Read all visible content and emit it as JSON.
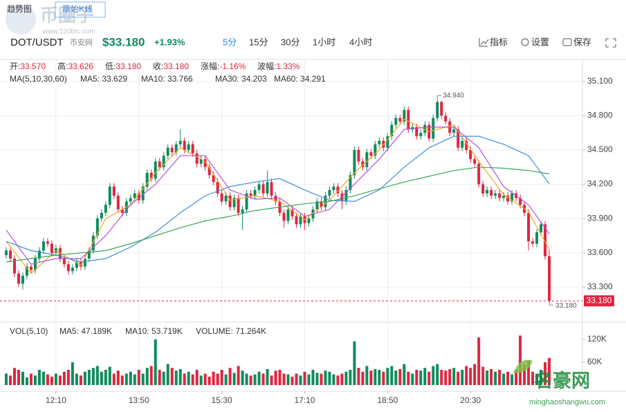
{
  "header": {
    "tabs": [
      "趋势图",
      "原始K线"
    ],
    "pair": "DOT/USDT",
    "exchange": "币安网",
    "price": "$33.180",
    "change": "+1.93%",
    "intervals": [
      "5分",
      "15分",
      "30分",
      "1小时",
      "4小时"
    ],
    "active_interval": 0,
    "tools": [
      "指标",
      "设置",
      "保存"
    ]
  },
  "watermarks": [
    "币圈子",
    "www.120btc.com",
    "名豪网",
    "minghaoshangwu.com"
  ],
  "chart_data": {
    "type": "candlestick",
    "ohlc_info": [
      {
        "label": "开:",
        "value": "33.570"
      },
      {
        "label": "高:",
        "value": "33.626"
      },
      {
        "label": "低:",
        "value": "33.180"
      },
      {
        "label": "收:",
        "value": "33.180"
      },
      {
        "label": "涨幅:",
        "value": "-1.16%"
      },
      {
        "label": "波幅:",
        "value": "1.33%"
      }
    ],
    "ma_title": "MA(5,10,30,60)",
    "up_color": "#0e8c5c",
    "down_color": "#e0253f",
    "xlim": [
      -1.5,
      139
    ],
    "xticks": [
      {
        "value": 12,
        "label": "12:10"
      },
      {
        "value": 32,
        "label": "13:50"
      },
      {
        "value": 52,
        "label": "15:30"
      },
      {
        "value": 72,
        "label": "17:10"
      },
      {
        "value": 92,
        "label": "18:50"
      },
      {
        "value": 112,
        "label": "20:30"
      }
    ],
    "ylim": [
      33.03,
      35.28
    ],
    "yticks": [
      {
        "value": 35.1,
        "label": "35.100"
      },
      {
        "value": 34.8,
        "label": "34.800"
      },
      {
        "value": 34.5,
        "label": "34.500"
      },
      {
        "value": 34.2,
        "label": "34.200"
      },
      {
        "value": 33.9,
        "label": "33.900"
      },
      {
        "value": 33.6,
        "label": "33.600"
      },
      {
        "value": 33.3,
        "label": "33.300"
      }
    ],
    "grid": true,
    "candles": [
      [
        33.58,
        33.65,
        33.55,
        33.62
      ],
      [
        33.62,
        33.65,
        33.52,
        33.55
      ],
      [
        33.55,
        33.58,
        33.39,
        33.42
      ],
      [
        33.42,
        33.45,
        33.3,
        33.33
      ],
      [
        33.33,
        33.43,
        33.28,
        33.4
      ],
      [
        33.4,
        33.51,
        33.37,
        33.48
      ],
      [
        33.48,
        33.51,
        33.42,
        33.45
      ],
      [
        33.45,
        33.58,
        33.42,
        33.55
      ],
      [
        33.55,
        33.65,
        33.52,
        33.62
      ],
      [
        33.62,
        33.73,
        33.59,
        33.7
      ],
      [
        33.7,
        33.73,
        33.65,
        33.68
      ],
      [
        33.68,
        33.71,
        33.57,
        33.6
      ],
      [
        33.6,
        33.67,
        33.57,
        33.64
      ],
      [
        33.64,
        33.67,
        33.52,
        33.55
      ],
      [
        33.55,
        33.58,
        33.47,
        33.5
      ],
      [
        33.5,
        33.53,
        33.41,
        33.44
      ],
      [
        33.44,
        33.5,
        33.41,
        33.47
      ],
      [
        33.47,
        33.55,
        33.44,
        33.52
      ],
      [
        33.52,
        33.55,
        33.45,
        33.48
      ],
      [
        33.48,
        33.58,
        33.45,
        33.55
      ],
      [
        33.55,
        33.65,
        33.52,
        33.62
      ],
      [
        33.62,
        33.78,
        33.59,
        33.75
      ],
      [
        33.75,
        33.93,
        33.72,
        33.9
      ],
      [
        33.9,
        33.98,
        33.87,
        33.95
      ],
      [
        33.95,
        34.05,
        33.92,
        34.02
      ],
      [
        34.02,
        34.21,
        33.99,
        34.18
      ],
      [
        34.18,
        34.21,
        34.07,
        34.1
      ],
      [
        34.1,
        34.13,
        33.95,
        33.98
      ],
      [
        33.98,
        34.01,
        33.92,
        33.95
      ],
      [
        33.95,
        34.08,
        33.92,
        34.05
      ],
      [
        34.05,
        34.11,
        34.02,
        34.08
      ],
      [
        34.08,
        34.15,
        34.05,
        34.12
      ],
      [
        34.12,
        34.15,
        34.03,
        34.06
      ],
      [
        34.06,
        34.21,
        34.03,
        34.18
      ],
      [
        34.18,
        34.33,
        34.15,
        34.3
      ],
      [
        34.3,
        34.33,
        34.22,
        34.25
      ],
      [
        34.25,
        34.43,
        34.22,
        34.4
      ],
      [
        34.4,
        34.43,
        34.32,
        34.35
      ],
      [
        34.35,
        34.48,
        34.32,
        34.45
      ],
      [
        34.45,
        34.55,
        34.42,
        34.52
      ],
      [
        34.52,
        34.55,
        34.45,
        34.48
      ],
      [
        34.48,
        34.58,
        34.45,
        34.55
      ],
      [
        34.55,
        34.68,
        34.52,
        34.58
      ],
      [
        34.58,
        34.61,
        34.47,
        34.5
      ],
      [
        34.5,
        34.58,
        34.47,
        34.55
      ],
      [
        34.55,
        34.58,
        34.44,
        34.47
      ],
      [
        34.47,
        34.5,
        34.35,
        34.38
      ],
      [
        34.38,
        34.45,
        34.35,
        34.42
      ],
      [
        34.42,
        34.45,
        34.32,
        34.35
      ],
      [
        34.35,
        34.38,
        34.25,
        34.28
      ],
      [
        34.28,
        34.31,
        34.19,
        34.22
      ],
      [
        34.22,
        34.25,
        34.09,
        34.12
      ],
      [
        34.12,
        34.15,
        34.02,
        34.05
      ],
      [
        34.05,
        34.13,
        34.02,
        34.1
      ],
      [
        34.1,
        34.13,
        33.97,
        34.0
      ],
      [
        34.0,
        34.11,
        33.97,
        34.08
      ],
      [
        34.08,
        34.11,
        33.92,
        33.95
      ],
      [
        33.95,
        34.01,
        33.8,
        33.98
      ],
      [
        33.98,
        34.15,
        33.95,
        34.12
      ],
      [
        34.12,
        34.15,
        34.07,
        34.1
      ],
      [
        34.1,
        34.18,
        34.07,
        34.15
      ],
      [
        34.15,
        34.23,
        34.12,
        34.2
      ],
      [
        34.2,
        34.23,
        34.09,
        34.12
      ],
      [
        34.12,
        34.32,
        34.09,
        34.22
      ],
      [
        34.22,
        34.25,
        34.07,
        34.1
      ],
      [
        34.1,
        34.13,
        34.02,
        34.05
      ],
      [
        34.05,
        34.08,
        33.92,
        33.95
      ],
      [
        33.95,
        33.98,
        33.82,
        33.88
      ],
      [
        33.88,
        34.01,
        33.85,
        33.98
      ],
      [
        33.98,
        34.01,
        33.89,
        33.92
      ],
      [
        33.92,
        33.95,
        33.82,
        33.85
      ],
      [
        33.85,
        33.95,
        33.82,
        33.92
      ],
      [
        33.92,
        33.95,
        33.8,
        33.86
      ],
      [
        33.86,
        33.93,
        33.83,
        33.9
      ],
      [
        33.9,
        34.01,
        33.87,
        33.98
      ],
      [
        33.98,
        34.08,
        33.95,
        34.05
      ],
      [
        34.05,
        34.08,
        33.97,
        34.0
      ],
      [
        34.0,
        34.13,
        33.97,
        34.1
      ],
      [
        34.1,
        34.18,
        34.07,
        34.15
      ],
      [
        34.15,
        34.21,
        34.12,
        34.18
      ],
      [
        34.18,
        34.21,
        34.09,
        34.12
      ],
      [
        34.12,
        34.15,
        33.98,
        34.05
      ],
      [
        34.05,
        34.18,
        34.02,
        34.15
      ],
      [
        34.15,
        34.31,
        34.12,
        34.28
      ],
      [
        34.28,
        34.53,
        34.25,
        34.5
      ],
      [
        34.5,
        34.53,
        34.37,
        34.4
      ],
      [
        34.4,
        34.43,
        34.32,
        34.35
      ],
      [
        34.35,
        34.51,
        34.32,
        34.48
      ],
      [
        34.48,
        34.51,
        34.42,
        34.45
      ],
      [
        34.45,
        34.58,
        34.42,
        34.55
      ],
      [
        34.55,
        34.61,
        34.52,
        34.58
      ],
      [
        34.58,
        34.61,
        34.49,
        34.52
      ],
      [
        34.52,
        34.65,
        34.49,
        34.62
      ],
      [
        34.62,
        34.75,
        34.59,
        34.72
      ],
      [
        34.72,
        34.81,
        34.69,
        34.78
      ],
      [
        34.78,
        34.81,
        34.72,
        34.75
      ],
      [
        34.75,
        34.88,
        34.72,
        34.85
      ],
      [
        34.85,
        34.88,
        34.65,
        34.68
      ],
      [
        34.68,
        34.73,
        34.65,
        34.7
      ],
      [
        34.7,
        34.73,
        34.59,
        34.62
      ],
      [
        34.62,
        34.68,
        34.59,
        34.65
      ],
      [
        34.65,
        34.75,
        34.62,
        34.72
      ],
      [
        34.72,
        34.75,
        34.57,
        34.6
      ],
      [
        34.6,
        34.81,
        34.57,
        34.78
      ],
      [
        34.78,
        34.94,
        34.75,
        34.92
      ],
      [
        34.92,
        34.93,
        34.77,
        34.8
      ],
      [
        34.8,
        34.83,
        34.72,
        34.75
      ],
      [
        34.75,
        34.78,
        34.62,
        34.65
      ],
      [
        34.65,
        34.71,
        34.62,
        34.68
      ],
      [
        34.68,
        34.71,
        34.49,
        34.52
      ],
      [
        34.52,
        34.61,
        34.49,
        34.58
      ],
      [
        34.58,
        34.61,
        34.47,
        34.5
      ],
      [
        34.5,
        34.53,
        34.39,
        34.42
      ],
      [
        34.42,
        34.45,
        34.35,
        34.38
      ],
      [
        34.38,
        34.41,
        34.17,
        34.2
      ],
      [
        34.2,
        34.23,
        34.09,
        34.12
      ],
      [
        34.12,
        34.18,
        34.09,
        34.15
      ],
      [
        34.15,
        34.18,
        34.07,
        34.1
      ],
      [
        34.1,
        34.15,
        34.07,
        34.12
      ],
      [
        34.12,
        34.15,
        34.05,
        34.08
      ],
      [
        34.08,
        34.13,
        34.05,
        34.1
      ],
      [
        34.1,
        34.13,
        34.02,
        34.05
      ],
      [
        34.05,
        34.15,
        34.02,
        34.12
      ],
      [
        34.12,
        34.15,
        34.05,
        34.08
      ],
      [
        34.08,
        34.11,
        33.99,
        34.02
      ],
      [
        34.02,
        34.05,
        33.92,
        33.95
      ],
      [
        33.95,
        33.98,
        33.62,
        33.7
      ],
      [
        33.7,
        33.73,
        33.65,
        33.68
      ],
      [
        33.68,
        33.81,
        33.65,
        33.78
      ],
      [
        33.78,
        33.88,
        33.75,
        33.85
      ],
      [
        33.85,
        33.88,
        33.54,
        33.57
      ],
      [
        33.57,
        33.626,
        33.18,
        33.18
      ]
    ],
    "ma_x": [
      0,
      6,
      12,
      18,
      24,
      30,
      36,
      42,
      48,
      54,
      60,
      66,
      72,
      78,
      84,
      90,
      96,
      102,
      108,
      114,
      120,
      126,
      131
    ],
    "series": [
      {
        "legend": "MA5: 33.629",
        "color": "#f5a623",
        "values": [
          33.7,
          33.42,
          33.62,
          33.49,
          33.9,
          34.02,
          34.3,
          34.52,
          34.4,
          34.06,
          34.1,
          34.05,
          33.89,
          34.06,
          34.3,
          34.5,
          34.77,
          34.66,
          34.72,
          34.4,
          34.11,
          33.96,
          33.629
        ]
      },
      {
        "legend": "MA10: 33.766",
        "color": "#b44fd6",
        "values": [
          33.8,
          33.5,
          33.55,
          33.55,
          33.75,
          34.02,
          34.2,
          34.45,
          34.45,
          34.15,
          34.07,
          34.08,
          33.92,
          33.98,
          34.2,
          34.42,
          34.68,
          34.7,
          34.7,
          34.52,
          34.18,
          34.02,
          33.766
        ]
      },
      {
        "legend": "MA30: 34.203",
        "color": "#3b8fd9",
        "values": [
          33.7,
          33.62,
          33.58,
          33.52,
          33.55,
          33.65,
          33.78,
          33.95,
          34.1,
          34.18,
          34.22,
          34.25,
          34.15,
          34.06,
          34.05,
          34.15,
          34.35,
          34.52,
          34.62,
          34.62,
          34.55,
          34.45,
          34.203
        ]
      },
      {
        "legend": "MA60: 34.291",
        "color": "#3aa757",
        "values": [
          33.52,
          33.55,
          33.58,
          33.6,
          33.62,
          33.68,
          33.75,
          33.82,
          33.88,
          33.92,
          33.97,
          34.0,
          34.03,
          34.05,
          34.1,
          34.16,
          34.22,
          34.27,
          34.32,
          34.35,
          34.34,
          34.32,
          34.291
        ]
      }
    ],
    "high_marker": {
      "index": 104,
      "value": 34.94,
      "label": "34.940"
    },
    "low_marker": {
      "index": 131,
      "value": 33.18,
      "label": "33.180"
    },
    "last_price": {
      "value": 33.18,
      "label": "33.180",
      "color": "#e0253f"
    },
    "volume": {
      "title": "VOL(5,10)",
      "legend": [
        {
          "text": "MA5: 47.189K",
          "color": "#f5a623"
        },
        {
          "text": "MA10: 53.719K",
          "color": "#b44fd6"
        },
        {
          "text": "VOLUME: 71.264K",
          "color": "#e0253f"
        }
      ],
      "ylim": [
        0,
        158000
      ],
      "yticks": [
        {
          "value": 60000,
          "label": "60K"
        },
        {
          "value": 120000,
          "label": "120K"
        }
      ],
      "values": [
        30000,
        25000,
        45000,
        40000,
        35000,
        20000,
        30000,
        25000,
        40000,
        35000,
        28000,
        22000,
        30000,
        25000,
        35000,
        40000,
        60000,
        30000,
        25000,
        35000,
        40000,
        45000,
        50000,
        35000,
        40000,
        48000,
        30000,
        38000,
        25000,
        30000,
        35000,
        28000,
        40000,
        30000,
        45000,
        50000,
        120000,
        40000,
        35000,
        55000,
        45000,
        38000,
        42000,
        30000,
        35000,
        28000,
        40000,
        25000,
        30000,
        22000,
        35000,
        30000,
        40000,
        28000,
        45000,
        32000,
        50000,
        38000,
        30000,
        25000,
        28000,
        35000,
        30000,
        42000,
        25000,
        38000,
        40000,
        30000,
        28000,
        22000,
        30000,
        25000,
        35000,
        28000,
        40000,
        32000,
        30000,
        38000,
        35000,
        28000,
        25000,
        30000,
        35000,
        40000,
        115000,
        45000,
        35000,
        50000,
        38000,
        42000,
        40000,
        35000,
        45000,
        50000,
        38000,
        42000,
        55000,
        35000,
        30000,
        40000,
        38000,
        45000,
        35000,
        50000,
        55000,
        40000,
        38000,
        42000,
        45000,
        35000,
        40000,
        50000,
        45000,
        55000,
        125000,
        48000,
        38000,
        42000,
        35000,
        40000,
        30000,
        35000,
        28000,
        40000,
        130000,
        55000,
        65000,
        35000,
        30000,
        40000,
        60000,
        71264
      ]
    }
  }
}
